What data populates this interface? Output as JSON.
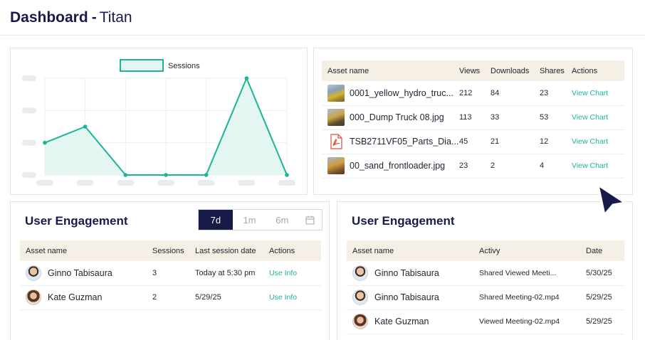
{
  "header": {
    "title_bold": "Dashboard",
    "title_sep": "-",
    "title_light": "Titan"
  },
  "chart_data": {
    "type": "area",
    "legend": "Sessions",
    "legend_position": "top-center",
    "values": [
      1,
      1.5,
      0,
      0,
      0,
      3,
      0
    ],
    "ylim": [
      0,
      3
    ],
    "grid": true,
    "series_color": "#1db39a",
    "fill_color": "#e3f6f1"
  },
  "assets": {
    "headers": [
      "Asset name",
      "Views",
      "Downloads",
      "Shares",
      "Actions"
    ],
    "rows": [
      {
        "icon": "image-thumbnail",
        "name": "0001_yellow_hydro_truc...",
        "views": "212",
        "downloads": "84",
        "shares": "23",
        "action": "View Chart"
      },
      {
        "icon": "image-thumbnail",
        "name": "000_Dump Truck 08.jpg",
        "views": "113",
        "downloads": "33",
        "shares": "53",
        "action": "View Chart"
      },
      {
        "icon": "pdf-icon",
        "name": "TSB2711VF05_Parts_Dia...",
        "views": "45",
        "downloads": "21",
        "shares": "12",
        "action": "View Chart"
      },
      {
        "icon": "image-thumbnail",
        "name": "00_sand_frontloader.jpg",
        "views": "23",
        "downloads": "2",
        "shares": "4",
        "action": "View Chart"
      }
    ]
  },
  "engagement_left": {
    "title": "User Engagement",
    "range": {
      "options": [
        "7d",
        "1m",
        "6m"
      ],
      "selected": "7d"
    },
    "headers": [
      "Asset name",
      "Sessions",
      "Last session date",
      "Actions"
    ],
    "rows": [
      {
        "avatar": "male-avatar",
        "name": "Ginno Tabisaura",
        "sessions": "3",
        "last": "Today at 5:30 pm",
        "action": "Use Info"
      },
      {
        "avatar": "female-avatar",
        "name": "Kate Guzman",
        "sessions": "2",
        "last": "5/29/25",
        "action": "Use Info"
      }
    ]
  },
  "engagement_right": {
    "title": "User Engagement",
    "headers": [
      "Asset name",
      "Activy",
      "Date"
    ],
    "rows": [
      {
        "avatar": "male-avatar",
        "name": "Ginno Tabisaura",
        "activity": "Shared Viewed Meeti...",
        "date": "5/30/25"
      },
      {
        "avatar": "male-avatar",
        "name": "Ginno Tabisaura",
        "activity": "Shared Meeting-02.mp4",
        "date": "5/29/25"
      },
      {
        "avatar": "female-avatar",
        "name": "Kate Guzman",
        "activity": "Viewed Meeting-02.mp4",
        "date": "5/29/25"
      }
    ]
  },
  "colors": {
    "navy": "#161b4a",
    "teal": "#1db39a",
    "table_header": "#f5efe5"
  }
}
